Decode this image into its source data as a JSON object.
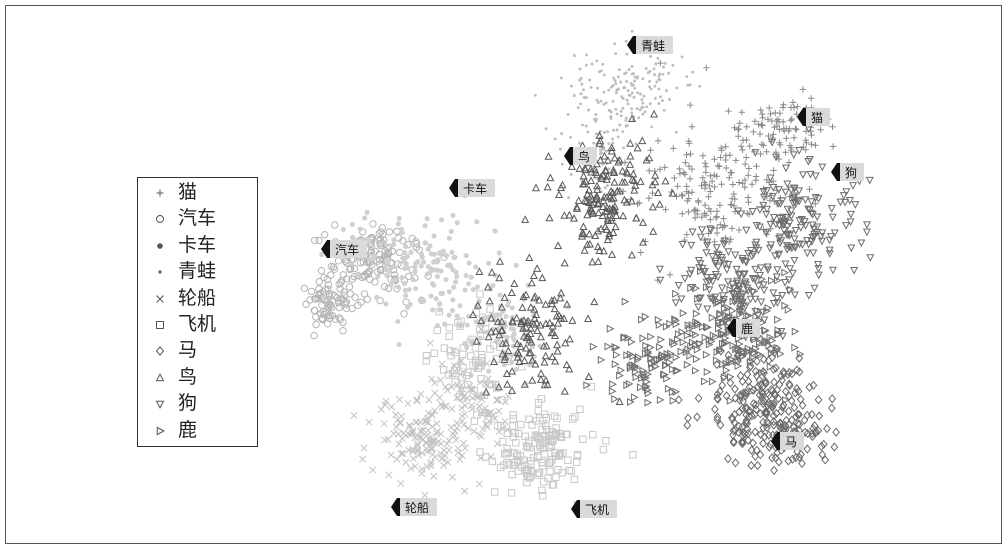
{
  "chart_data": {
    "type": "scatter",
    "title": "",
    "xlabel": "",
    "ylabel": "",
    "grid": false,
    "legend_position": "left",
    "series": [
      {
        "name": "猫",
        "marker": "plus",
        "color": "#8a8a8a"
      },
      {
        "name": "汽车",
        "marker": "circle",
        "color": "#b5b5b5"
      },
      {
        "name": "卡车",
        "marker": "dot-large",
        "color": "#d0d0d0"
      },
      {
        "name": "青蛙",
        "marker": "dot-small",
        "color": "#bdbdbd"
      },
      {
        "name": "轮船",
        "marker": "x",
        "color": "#c2c2c2"
      },
      {
        "name": "飞机",
        "marker": "square",
        "color": "#c8c8c8"
      },
      {
        "name": "马",
        "marker": "diamond",
        "color": "#6a6a6a"
      },
      {
        "name": "鸟",
        "marker": "triangle-up",
        "color": "#5a5a5a"
      },
      {
        "name": "狗",
        "marker": "triangle-down",
        "color": "#6e6e6e"
      },
      {
        "name": "鹿",
        "marker": "triangle-right",
        "color": "#707070"
      }
    ],
    "annotations": [
      "青蛙",
      "猫",
      "鸟",
      "狗",
      "卡车",
      "汽车",
      "鹿",
      "马",
      "轮船",
      "飞机"
    ]
  },
  "legend": {
    "items": [
      "猫",
      "汽车",
      "卡车",
      "青蛙",
      "轮船",
      "飞机",
      "马",
      "鸟",
      "狗",
      "鹿"
    ]
  }
}
